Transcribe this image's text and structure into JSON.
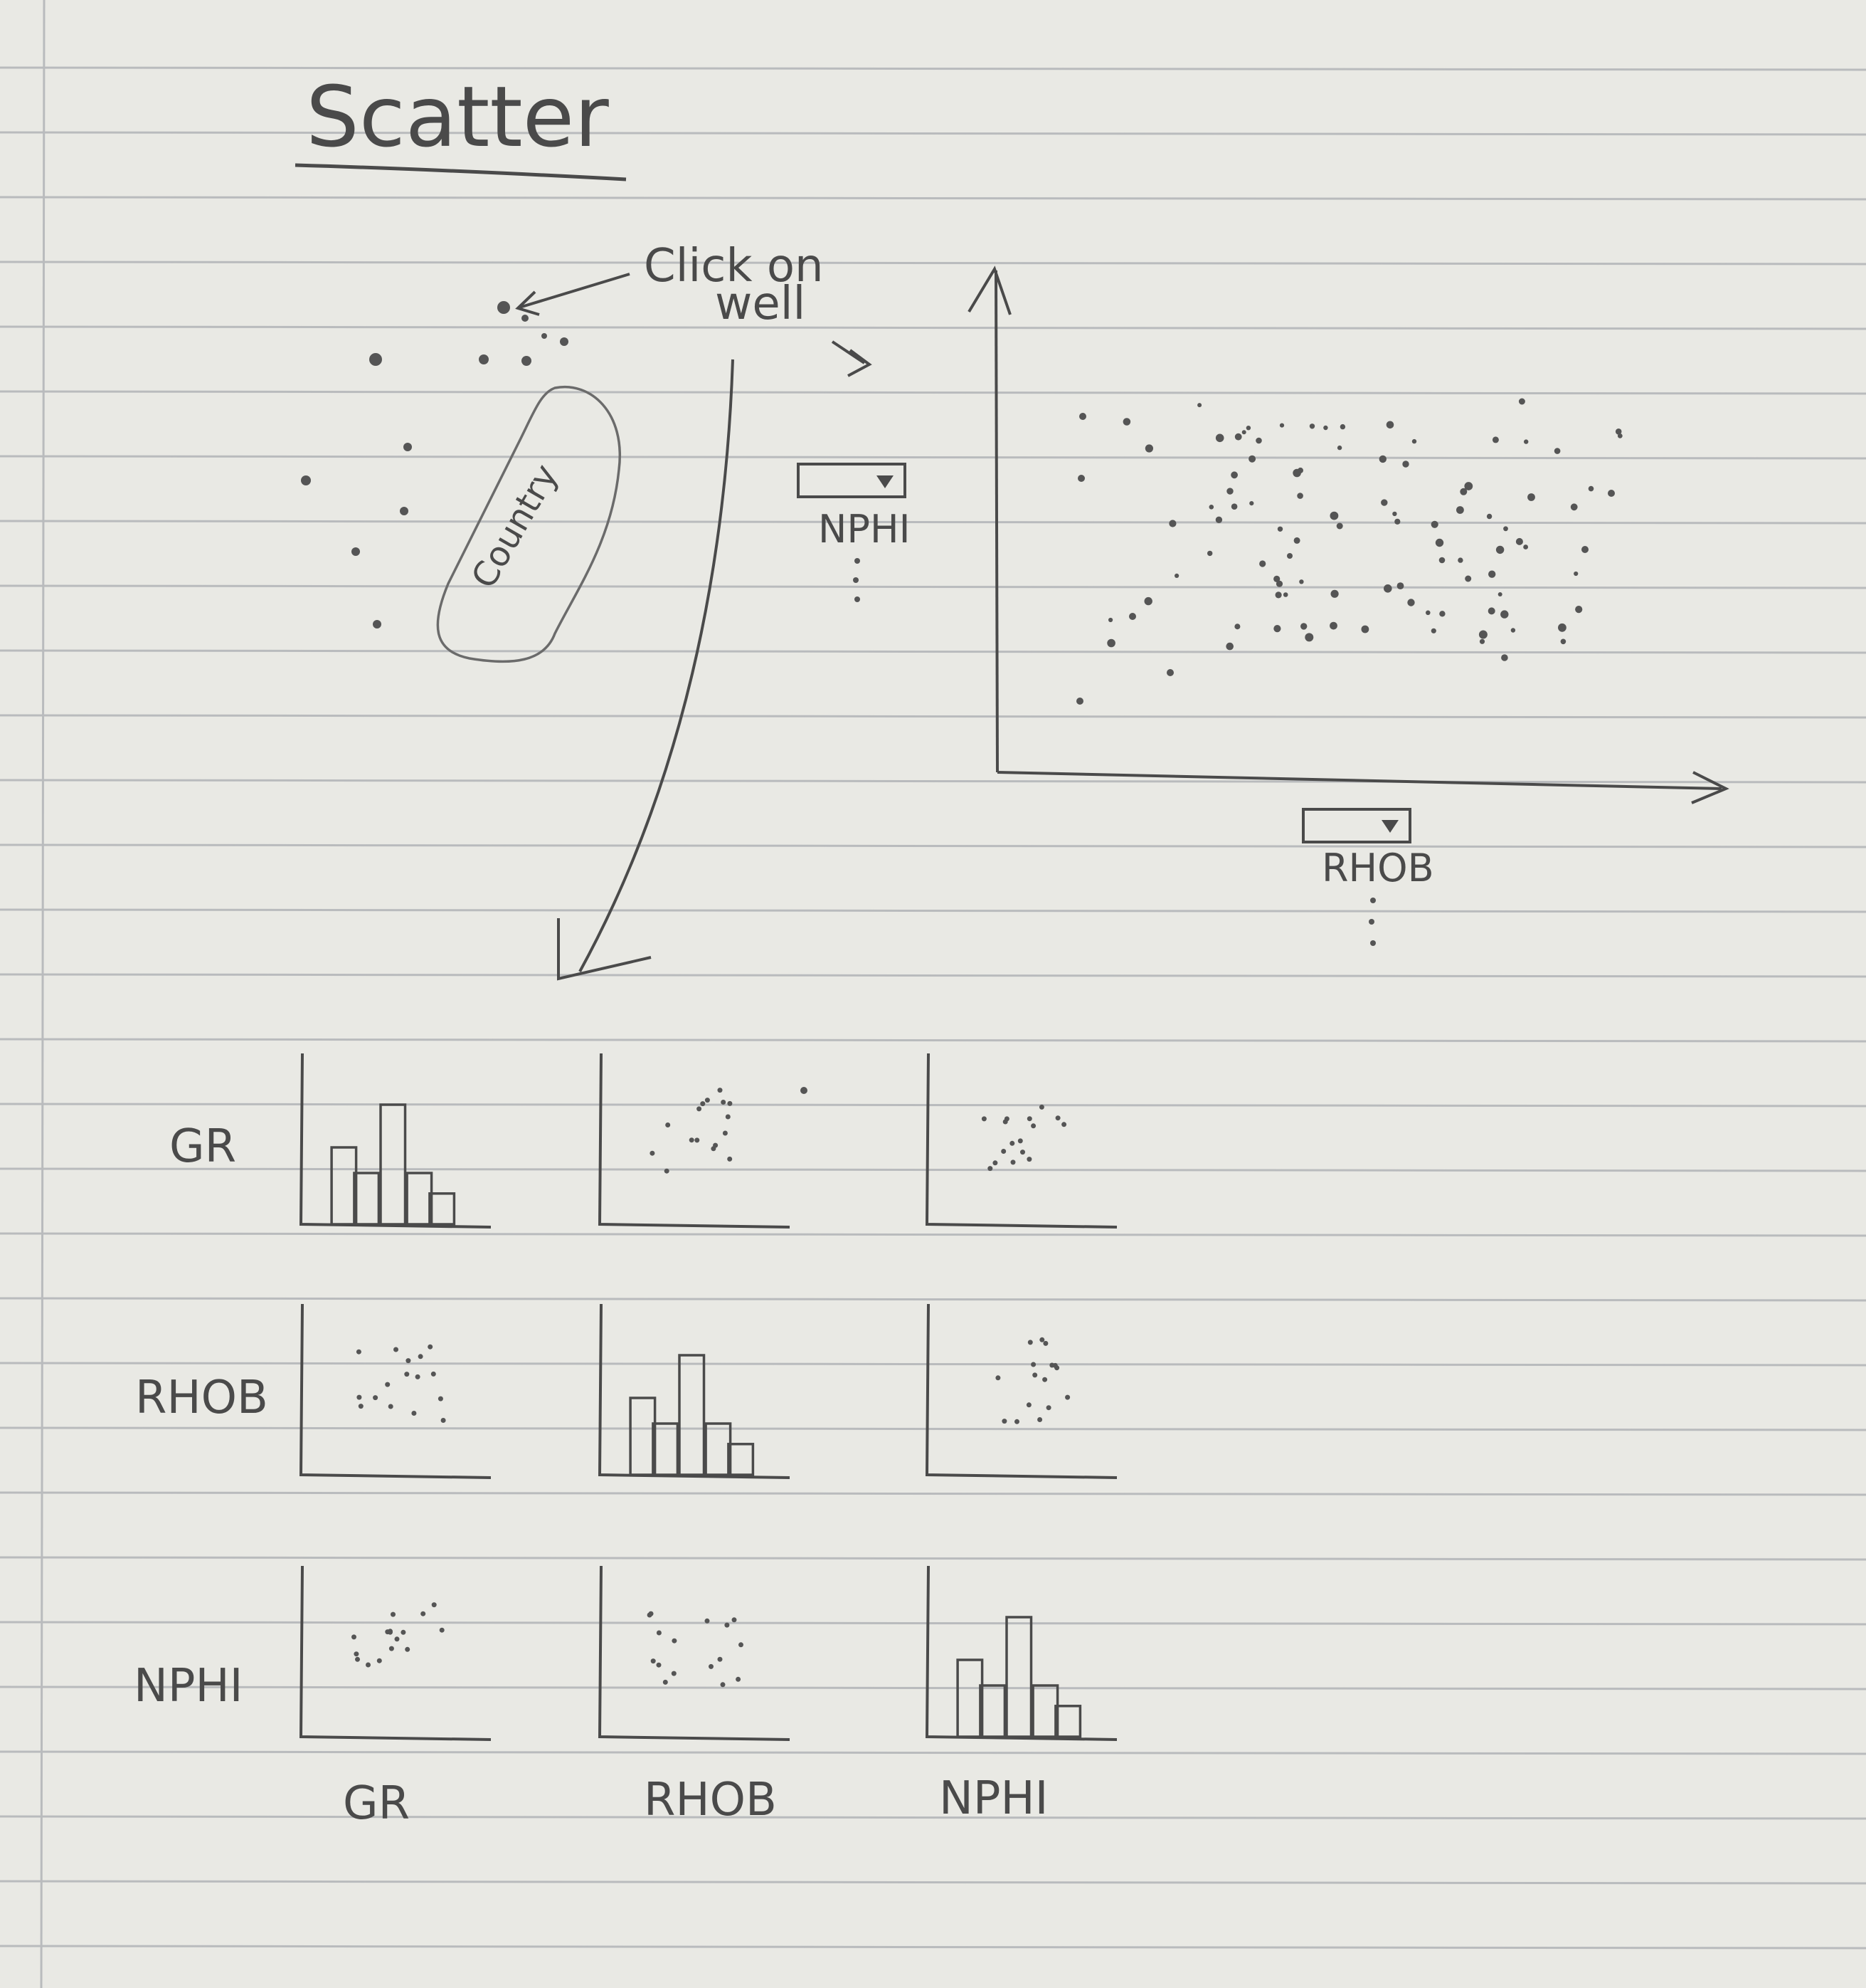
{
  "title": "Scatter",
  "annotation": {
    "click_label_1": "Click on",
    "click_label_2": "well"
  },
  "map": {
    "region_label": "Country"
  },
  "dropdowns": {
    "y_axis": {
      "selected": "NPHI"
    },
    "x_axis": {
      "selected": "RHOB"
    }
  },
  "matrix": {
    "row_labels": [
      "GR",
      "RHOB",
      "NPHI"
    ],
    "col_labels": [
      "GR",
      "RHOB",
      "NPHI"
    ]
  },
  "colors": {
    "paper": "#e9e9e4",
    "rule_line": "#b9bbbd",
    "ink": "#4a4a4a",
    "dot": "#555555"
  }
}
